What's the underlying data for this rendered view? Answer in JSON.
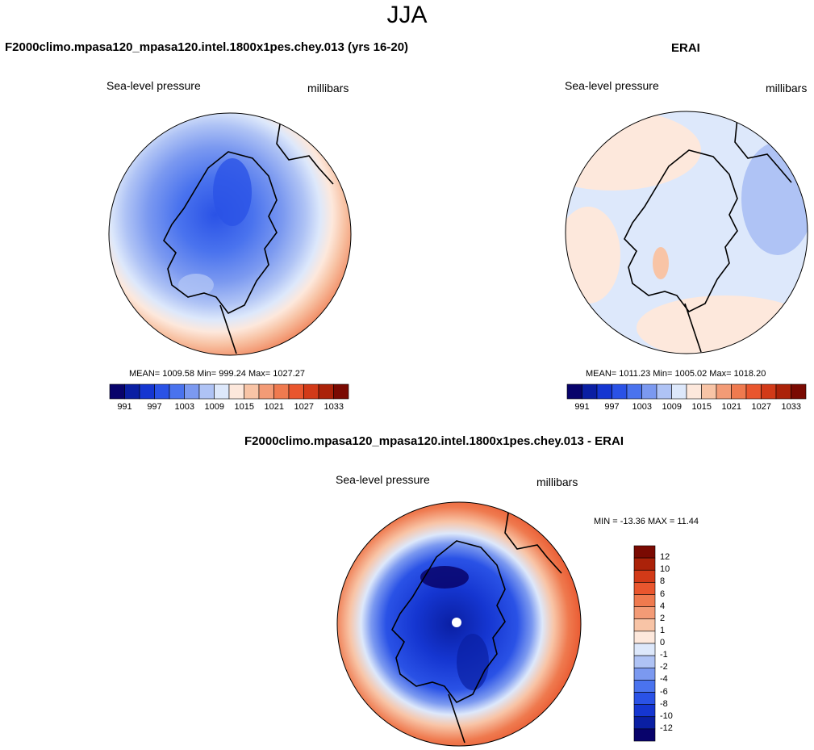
{
  "page_title": "JJA",
  "colors": {
    "land_outline": "#000000",
    "abs_scale": [
      "#08036b",
      "#0a1fa3",
      "#1536d1",
      "#2a52e6",
      "#4a73ee",
      "#7b99f0",
      "#afc3f5",
      "#dde8fb",
      "#fde8dc",
      "#f8c4a6",
      "#f39b76",
      "#ef7a4f",
      "#e9562e",
      "#d23a18",
      "#ab2209",
      "#7a0a02"
    ],
    "diff_scale": [
      "#08036b",
      "#0a1fa3",
      "#1536d1",
      "#2a52e6",
      "#4a73ee",
      "#7b99f0",
      "#afc3f5",
      "#dde8fb",
      "#fde8dc",
      "#f8c4a6",
      "#f39b76",
      "#ef7a4f",
      "#e9562e",
      "#d23a18",
      "#ab2209",
      "#7a0a02"
    ]
  },
  "panels": {
    "model": {
      "title": "F2000climo.mpasa120_mpasa120.intel.1800x1pes.chey.013 (yrs 16-20)",
      "variable": "Sea-level pressure",
      "units": "millibars",
      "stats": "MEAN= 1009.58  Min= 999.24  Max= 1027.27",
      "colorbar_ticks": [
        "991",
        "997",
        "1003",
        "1009",
        "1015",
        "1021",
        "1027",
        "1033"
      ]
    },
    "obs": {
      "title": "ERAI",
      "variable": "Sea-level pressure",
      "units": "millibars",
      "stats": "MEAN= 1011.23  Min= 1005.02  Max= 1018.20",
      "colorbar_ticks": [
        "991",
        "997",
        "1003",
        "1009",
        "1015",
        "1021",
        "1027",
        "1033"
      ]
    },
    "diff": {
      "title": "F2000climo.mpasa120_mpasa120.intel.1800x1pes.chey.013 - ERAI",
      "variable": "Sea-level pressure",
      "units": "millibars",
      "stats": "MIN = -13.36 MAX =  11.44",
      "colorbar_ticks": [
        "12",
        "10",
        "8",
        "6",
        "4",
        "2",
        "1",
        "0",
        "-1",
        "-2",
        "-4",
        "-6",
        "-8",
        "-10",
        "-12"
      ]
    }
  }
}
